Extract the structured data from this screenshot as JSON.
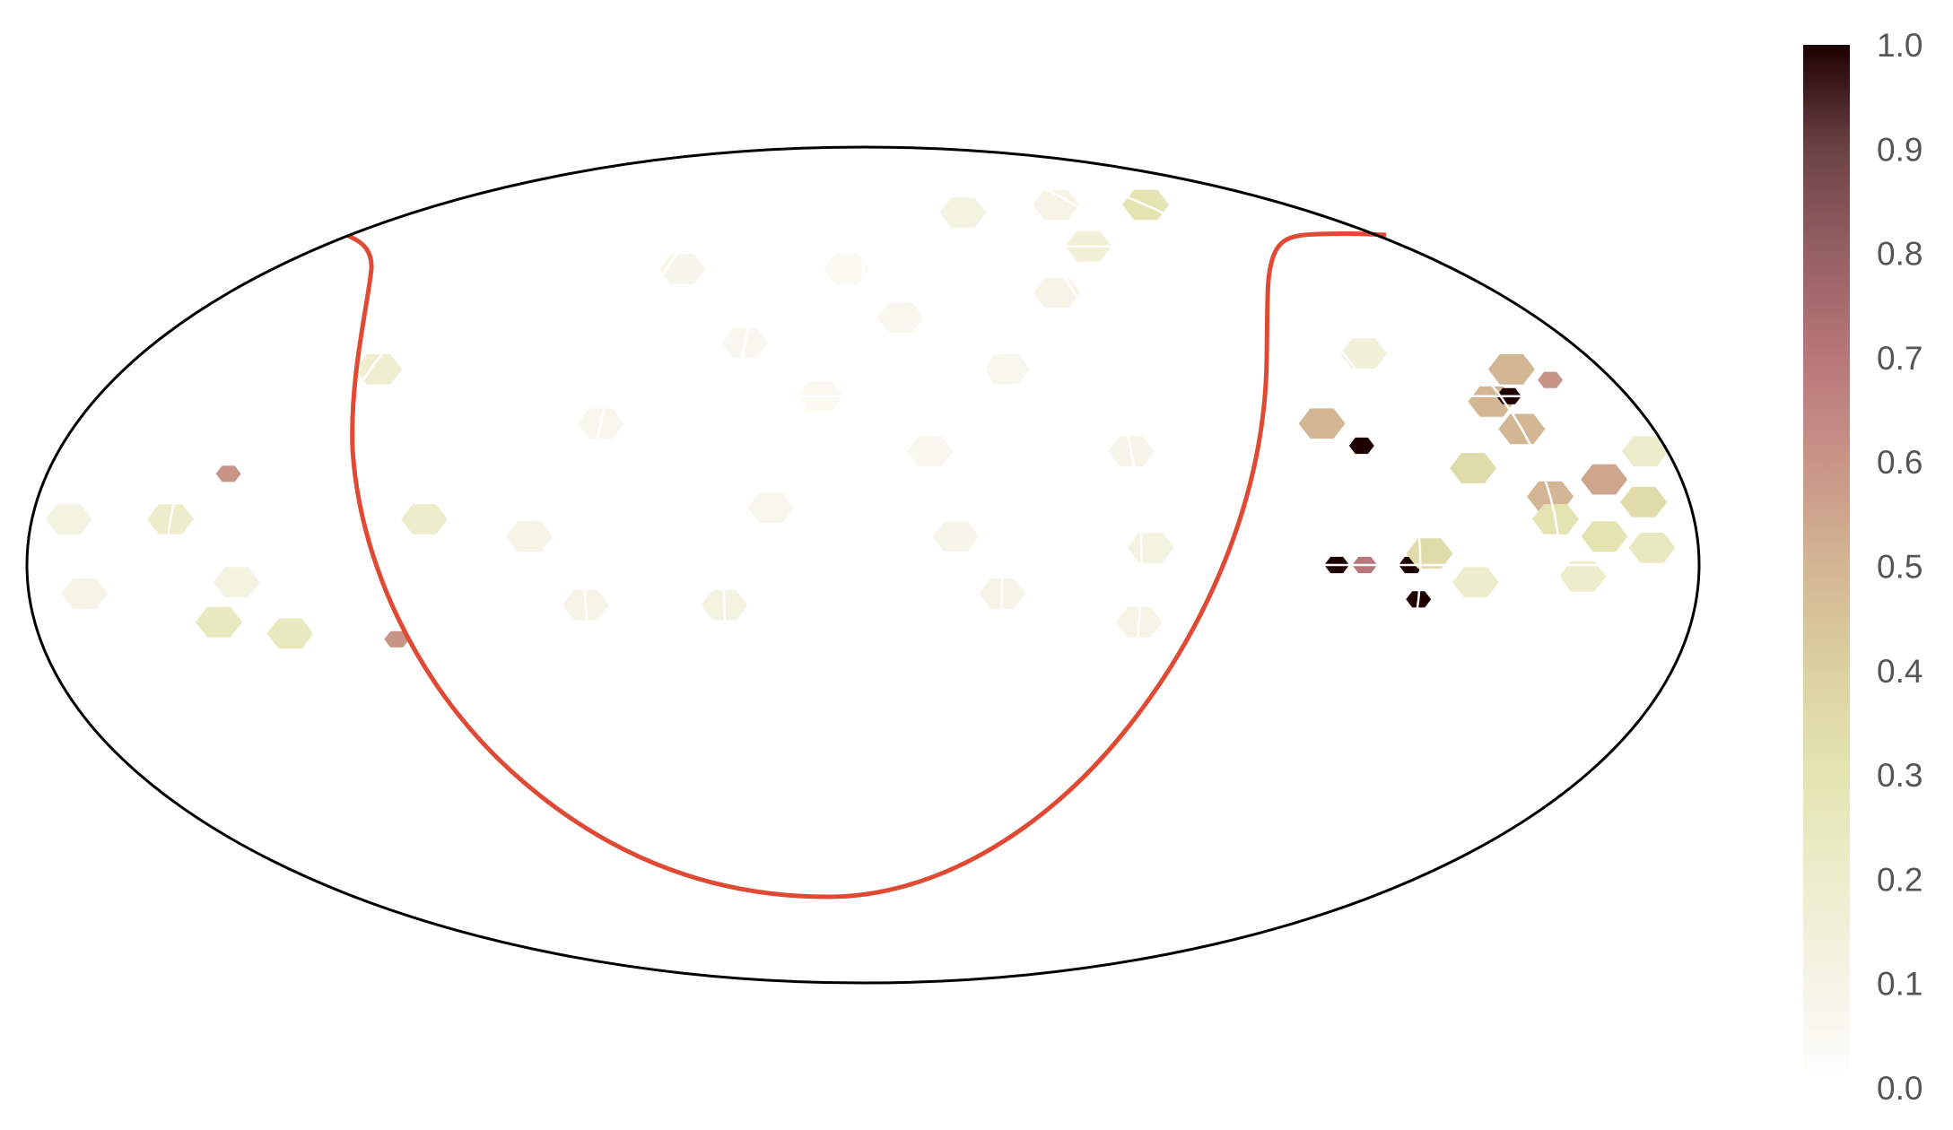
{
  "chart_data": {
    "type": "heatmap",
    "projection": "mollweide",
    "title": "",
    "grid": true,
    "colorbar": {
      "cmap": "pink_r",
      "min": 0.0,
      "max": 1.0,
      "tick_values": [
        0.0,
        0.1,
        0.2,
        0.3,
        0.4,
        0.5,
        0.6,
        0.7,
        0.8,
        0.9,
        1.0
      ],
      "ticks": [
        "0.0",
        "0.1",
        "0.2",
        "0.3",
        "0.4",
        "0.5",
        "0.6",
        "0.7",
        "0.8",
        "0.9",
        "1.0"
      ],
      "placement": "right"
    },
    "boundary_curve_color": "#e04a34",
    "series": [
      {
        "kind": "sky-map",
        "values": [
          {
            "lon": -5,
            "lat": 55,
            "value": 0.05
          },
          {
            "lon": 10,
            "lat": 45,
            "value": 0.06
          },
          {
            "lon": -10,
            "lat": 30,
            "value": 0.05
          },
          {
            "lon": 15,
            "lat": 20,
            "value": 0.06
          },
          {
            "lon": -20,
            "lat": 10,
            "value": 0.07
          },
          {
            "lon": 20,
            "lat": 5,
            "value": 0.08
          },
          {
            "lon": -30,
            "lat": 40,
            "value": 0.06
          },
          {
            "lon": 35,
            "lat": 35,
            "value": 0.07
          },
          {
            "lon": 40,
            "lat": 68,
            "value": 0.12
          },
          {
            "lon": -55,
            "lat": 55,
            "value": 0.08
          },
          {
            "lon": 55,
            "lat": 50,
            "value": 0.1
          },
          {
            "lon": -60,
            "lat": 25,
            "value": 0.07
          },
          {
            "lon": 60,
            "lat": 20,
            "value": 0.09
          },
          {
            "lon": -72,
            "lat": 5,
            "value": 0.1
          },
          {
            "lon": 62,
            "lat": 3,
            "value": 0.12
          },
          {
            "lon": 75,
            "lat": 60,
            "value": 0.15
          },
          {
            "lon": 82,
            "lat": 70,
            "value": 0.1
          },
          {
            "lon": -118,
            "lat": 35,
            "value": 0.18
          },
          {
            "lon": -140,
            "lat": 16,
            "value": 0.6
          },
          {
            "lon": -150,
            "lat": 8,
            "value": 0.2
          },
          {
            "lon": -125,
            "lat": -12,
            "value": 0.25
          },
          {
            "lon": -135,
            "lat": -3,
            "value": 0.12
          },
          {
            "lon": -172,
            "lat": 8,
            "value": 0.12
          },
          {
            "lon": -168,
            "lat": -5,
            "value": 0.1
          },
          {
            "lon": -140,
            "lat": -10,
            "value": 0.25
          },
          {
            "lon": -95,
            "lat": 8,
            "value": 0.2
          },
          {
            "lon": -102,
            "lat": -13,
            "value": 0.6
          },
          {
            "lon": 125,
            "lat": 38,
            "value": 0.15
          },
          {
            "lon": 105,
            "lat": 25,
            "value": 0.5
          },
          {
            "lon": 112,
            "lat": 21,
            "value": 1.0
          },
          {
            "lon": 147,
            "lat": 29,
            "value": 0.5
          },
          {
            "lon": 152,
            "lat": 30,
            "value": 1.0
          },
          {
            "lon": 150,
            "lat": 24,
            "value": 0.5
          },
          {
            "lon": 158,
            "lat": 35,
            "value": 0.5
          },
          {
            "lon": 165,
            "lat": 33,
            "value": 0.6
          },
          {
            "lon": 135,
            "lat": 17,
            "value": 0.35
          },
          {
            "lon": 150,
            "lat": 12,
            "value": 0.5
          },
          {
            "lon": 163,
            "lat": 15,
            "value": 0.55
          },
          {
            "lon": 170,
            "lat": 11,
            "value": 0.35
          },
          {
            "lon": 150,
            "lat": 8,
            "value": 0.3
          },
          {
            "lon": 160,
            "lat": 5,
            "value": 0.3
          },
          {
            "lon": 108,
            "lat": 0,
            "value": 0.7
          },
          {
            "lon": 118,
            "lat": 0,
            "value": 1.0
          },
          {
            "lon": 122,
            "lat": 2,
            "value": 0.35
          },
          {
            "lon": 102,
            "lat": 0,
            "value": 1.0
          },
          {
            "lon": 120,
            "lat": -6,
            "value": 1.0
          },
          {
            "lon": 132,
            "lat": -3,
            "value": 0.2
          },
          {
            "lon": 155,
            "lat": -2,
            "value": 0.2
          },
          {
            "lon": 170,
            "lat": 3,
            "value": 0.25
          },
          {
            "lon": 120,
            "lat": 70,
            "value": 0.3
          },
          {
            "lon": 175,
            "lat": 20,
            "value": 0.2
          },
          {
            "lon": 30,
            "lat": -5,
            "value": 0.1
          },
          {
            "lon": 60,
            "lat": -10,
            "value": 0.1
          },
          {
            "lon": -30,
            "lat": -7,
            "value": 0.12
          },
          {
            "lon": -60,
            "lat": -7,
            "value": 0.1
          }
        ]
      }
    ]
  }
}
